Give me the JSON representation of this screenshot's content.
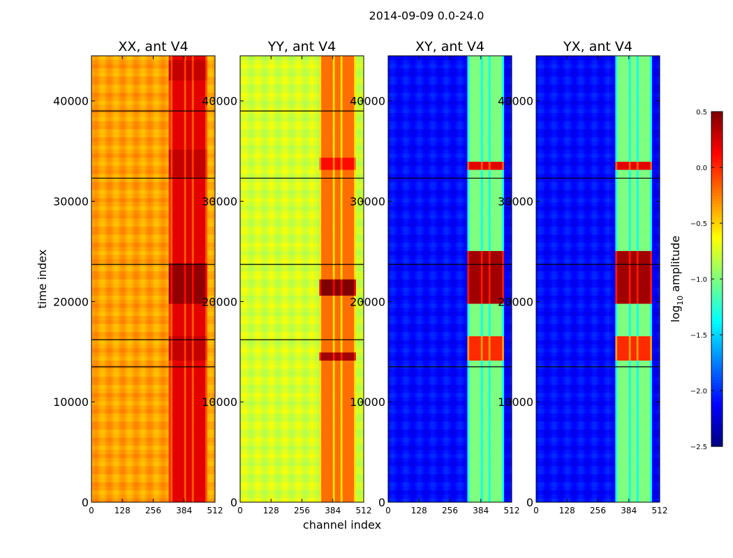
{
  "figure": {
    "suptitle": "2014-09-09 0.0-24.0",
    "xlabel": "channel index",
    "ylabel": "time index"
  },
  "colorbar": {
    "label_prefix": "log",
    "label_sub": "10",
    "label_suffix": " amplitude",
    "ticks": [
      "0.5",
      "0.0",
      "−0.5",
      "−1.0",
      "−1.5",
      "−2.0",
      "−2.5"
    ],
    "tick_values": [
      0.5,
      0.0,
      -0.5,
      -1.0,
      -1.5,
      -2.0,
      -2.5
    ],
    "range": [
      -2.5,
      0.5
    ],
    "colormap": "jet",
    "colormap_stops": [
      "#00007f",
      "#0000ff",
      "#007fff",
      "#00ffff",
      "#7fff7f",
      "#ffff00",
      "#ff7f00",
      "#ff0000",
      "#7f0000"
    ]
  },
  "chart_data": [
    {
      "type": "heatmap",
      "title": "XX, ant V4",
      "xlim": [
        0,
        512
      ],
      "ylim": [
        0,
        44500
      ],
      "xticks": [
        0,
        128,
        256,
        384,
        512
      ],
      "yticks": [
        0,
        10000,
        20000,
        30000,
        40000
      ],
      "base_level": -0.35,
      "hot_channels": [
        {
          "from": 330,
          "to": 478,
          "level": 0.2
        },
        {
          "from": 320,
          "to": 340,
          "level": 0.0
        }
      ],
      "hot_rows": [
        {
          "from": 20000,
          "to": 24000,
          "level": 0.45
        },
        {
          "from": 14000,
          "to": 16500,
          "level": 0.3
        },
        {
          "from": 32500,
          "to": 35000,
          "level": 0.3
        },
        {
          "from": 42000,
          "to": 44000,
          "level": 0.3
        }
      ],
      "dark_lines": [
        39000,
        32300,
        23700,
        16200,
        13500
      ]
    },
    {
      "type": "heatmap",
      "title": "YY, ant V4",
      "xlim": [
        0,
        512
      ],
      "ylim": [
        0,
        44500
      ],
      "xticks": [
        0,
        128,
        256,
        384,
        512
      ],
      "yticks": [
        0,
        10000,
        20000,
        30000,
        40000
      ],
      "base_level": -0.75,
      "hot_channels": [
        {
          "from": 330,
          "to": 478,
          "level": -0.2
        }
      ],
      "hot_rows": [
        {
          "from": 20800,
          "to": 22200,
          "level": 0.5
        },
        {
          "from": 33000,
          "to": 34500,
          "level": 0.1
        },
        {
          "from": 42000,
          "to": 44000,
          "level": -0.2
        },
        {
          "from": 14000,
          "to": 15000,
          "level": 0.4
        }
      ],
      "dark_lines": [
        39000,
        32300,
        23700,
        16200
      ]
    },
    {
      "type": "heatmap",
      "title": "XY, ant V4",
      "xlim": [
        0,
        512
      ],
      "ylim": [
        0,
        44500
      ],
      "xticks": [
        0,
        128,
        256,
        384,
        512
      ],
      "yticks": [
        0,
        10000,
        20000,
        30000,
        40000
      ],
      "base_level": -2.1,
      "hot_channels": [
        {
          "from": 330,
          "to": 478,
          "level": -1.0
        }
      ],
      "hot_rows": [
        {
          "from": 20000,
          "to": 25000,
          "level": 0.4
        },
        {
          "from": 14000,
          "to": 16500,
          "level": 0.0
        },
        {
          "from": 33000,
          "to": 34000,
          "level": 0.2
        },
        {
          "from": 32700,
          "to": 33000,
          "level": -1.2
        }
      ],
      "dark_lines": [
        32300,
        23700,
        13500
      ]
    },
    {
      "type": "heatmap",
      "title": "YX, ant V4",
      "xlim": [
        0,
        512
      ],
      "ylim": [
        0,
        44500
      ],
      "xticks": [
        0,
        128,
        256,
        384,
        512
      ],
      "yticks": [
        0,
        10000,
        20000,
        30000,
        40000
      ],
      "base_level": -2.1,
      "hot_channels": [
        {
          "from": 330,
          "to": 478,
          "level": -1.0
        }
      ],
      "hot_rows": [
        {
          "from": 20000,
          "to": 25000,
          "level": 0.4
        },
        {
          "from": 14000,
          "to": 16500,
          "level": 0.0
        },
        {
          "from": 33000,
          "to": 34000,
          "level": 0.2
        },
        {
          "from": 32700,
          "to": 33000,
          "level": -1.2
        }
      ],
      "dark_lines": [
        32300,
        23700,
        13500
      ]
    }
  ]
}
